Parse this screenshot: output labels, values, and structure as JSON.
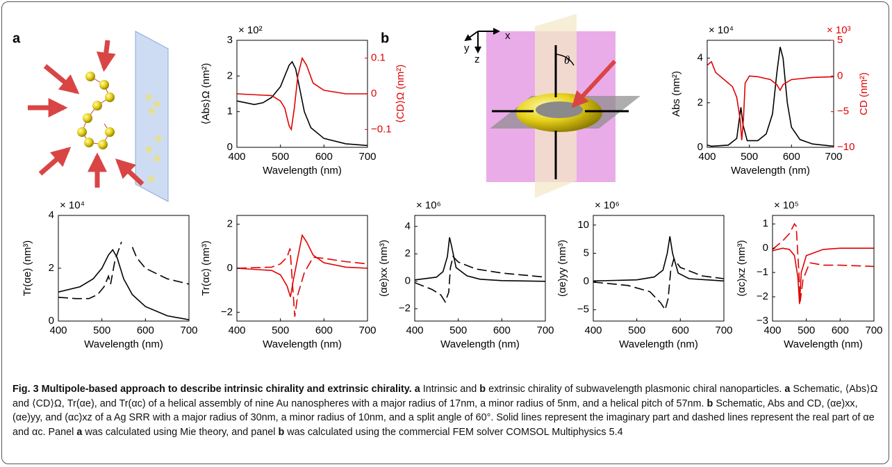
{
  "panels": [
    {
      "label": "a"
    },
    {
      "label": "b",
      "axes": [
        "x",
        "y",
        "z"
      ],
      "angle": "θ"
    }
  ],
  "chart_data": [
    {
      "type": "line",
      "xlabel": "Wavelength (nm)",
      "ylabel": "⟨Abs⟩Ω (nm²)",
      "multiplier": "× 10²",
      "y2label": "⟨CD⟩Ω (nm²)",
      "y2color": "#e00000",
      "xlim": [
        400,
        700
      ],
      "xticks": [
        400,
        500,
        600,
        700
      ],
      "ylim": [
        0,
        3
      ],
      "yticks": [
        0,
        1,
        2,
        3
      ],
      "y2lim": [
        -0.15,
        0.15
      ],
      "y2ticks": [
        {
          "value": -0.1,
          "label": "−0.1"
        },
        0,
        0.1
      ],
      "series": [
        {
          "color": "#000000",
          "dash": false,
          "x": [
            400,
            420,
            440,
            460,
            480,
            500,
            510,
            520,
            527,
            535,
            545,
            555,
            570,
            600,
            650,
            700
          ],
          "values": [
            1.3,
            1.25,
            1.2,
            1.25,
            1.4,
            1.7,
            2.0,
            2.3,
            2.4,
            2.2,
            1.6,
            1.0,
            0.55,
            0.25,
            0.1,
            0.05
          ]
        },
        {
          "color": "#e00000",
          "dash": false,
          "axis": "y2",
          "x": [
            400,
            480,
            500,
            510,
            520,
            525,
            532,
            540,
            550,
            560,
            575,
            600,
            650,
            700
          ],
          "values": [
            0,
            -0.005,
            -0.02,
            -0.04,
            -0.09,
            -0.1,
            -0.04,
            0.05,
            0.1,
            0.08,
            0.03,
            0.01,
            0,
            0
          ]
        }
      ]
    },
    {
      "type": "line",
      "xlabel": "Wavelength (nm)",
      "ylabel": "Abs (nm²)",
      "multiplier": "× 10⁴",
      "y2label": "CD (nm²)",
      "y2multiplier": "× 10³",
      "y2color": "#e00000",
      "xlim": [
        400,
        700
      ],
      "xticks": [
        400,
        500,
        600,
        700
      ],
      "ylim": [
        0,
        4.8
      ],
      "yticks": [
        0,
        2,
        4
      ],
      "y2lim": [
        -10,
        5
      ],
      "y2ticks": [
        {
          "value": -10,
          "label": "−10"
        },
        {
          "value": -5,
          "label": "−5"
        },
        0,
        5
      ],
      "series": [
        {
          "color": "#000000",
          "dash": false,
          "x": [
            400,
            410,
            450,
            470,
            480,
            485,
            495,
            520,
            540,
            555,
            565,
            573,
            580,
            590,
            600,
            620,
            650,
            700
          ],
          "values": [
            0.1,
            0.05,
            0.1,
            0.4,
            1.8,
            1.0,
            0.3,
            0.3,
            0.6,
            1.5,
            3.3,
            4.5,
            4.0,
            2.0,
            0.9,
            0.35,
            0.15,
            0.05
          ]
        },
        {
          "color": "#e00000",
          "dash": false,
          "axis": "y2",
          "x": [
            400,
            410,
            420,
            440,
            460,
            470,
            478,
            482,
            486,
            490,
            500,
            520,
            550,
            565,
            573,
            580,
            600,
            650,
            700
          ],
          "values": [
            1.5,
            2.0,
            0.5,
            -0.5,
            -1.5,
            -3,
            -6,
            -9,
            -6,
            -1,
            0,
            -0.1,
            -0.5,
            -1.2,
            -2,
            -1.2,
            -0.5,
            -0.2,
            -0.1
          ]
        }
      ]
    },
    {
      "type": "line",
      "xlabel": "Wavelength (nm)",
      "ylabel": "Tr(αe) (nm³)",
      "multiplier": "× 10⁴",
      "xlim": [
        400,
        700
      ],
      "xticks": [
        400,
        500,
        600,
        700
      ],
      "ylim": [
        0,
        4
      ],
      "yticks": [
        0,
        2,
        4
      ],
      "series": [
        {
          "color": "#000000",
          "dash": false,
          "x": [
            400,
            450,
            480,
            500,
            515,
            525,
            535,
            550,
            570,
            600,
            650,
            700
          ],
          "values": [
            1.1,
            1.3,
            1.6,
            2.0,
            2.5,
            2.7,
            2.4,
            1.6,
            1.0,
            0.55,
            0.2,
            0.05
          ]
        },
        {
          "color": "#000000",
          "dash": true,
          "x": [
            400,
            440,
            470,
            490,
            505,
            515,
            520,
            530,
            545,
            555,
            570,
            580,
            600,
            650,
            700
          ],
          "values": [
            0.9,
            0.85,
            0.85,
            1.0,
            1.3,
            1.7,
            1.4,
            2.3,
            3.0,
            null,
            2.8,
            2.4,
            2.0,
            1.6,
            1.4
          ]
        }
      ]
    },
    {
      "type": "line",
      "xlabel": "Wavelength (nm)",
      "ylabel": "Tr(αc) (nm³)",
      "xlim": [
        400,
        700
      ],
      "xticks": [
        400,
        500,
        600,
        700
      ],
      "ylim": [
        -2.4,
        2.4
      ],
      "yticks": [
        {
          "value": -2,
          "label": "−2"
        },
        0,
        2
      ],
      "series": [
        {
          "color": "#e00000",
          "dash": false,
          "x": [
            400,
            480,
            500,
            515,
            523,
            530,
            540,
            550,
            560,
            575,
            600,
            650,
            700
          ],
          "values": [
            0,
            -0.1,
            -0.3,
            -0.8,
            -1.3,
            -0.5,
            0.5,
            1.5,
            1.2,
            0.6,
            0.25,
            0.05,
            0
          ]
        },
        {
          "color": "#e00000",
          "dash": true,
          "x": [
            400,
            480,
            500,
            515,
            522,
            527,
            533,
            540,
            555,
            575,
            600,
            650,
            700
          ],
          "values": [
            0,
            0.05,
            0.2,
            0.5,
            0.9,
            -0.5,
            -2.2,
            -1.2,
            -0.2,
            0.5,
            0.45,
            0.3,
            0.2
          ]
        }
      ]
    },
    {
      "type": "line",
      "xlabel": "Wavelength (nm)",
      "ylabel": "(αe)xx (nm³)",
      "multiplier": "× 10⁶",
      "xlim": [
        400,
        700
      ],
      "xticks": [
        400,
        500,
        600,
        700
      ],
      "ylim": [
        -2.9,
        4.8
      ],
      "yticks": [
        {
          "value": -2,
          "label": "−2"
        },
        0,
        2,
        4
      ],
      "series": [
        {
          "color": "#000000",
          "dash": false,
          "x": [
            400,
            450,
            465,
            475,
            480,
            485,
            495,
            520,
            550,
            600,
            700
          ],
          "values": [
            0.1,
            0.3,
            0.7,
            1.8,
            3.2,
            2.5,
            1.0,
            0.4,
            0.15,
            0.05,
            0
          ]
        },
        {
          "color": "#000000",
          "dash": true,
          "x": [
            400,
            440,
            460,
            470,
            478,
            482,
            488,
            500,
            540,
            600,
            700
          ],
          "values": [
            -0.1,
            -0.6,
            -1.0,
            -1.5,
            -0.8,
            1.0,
            1.8,
            1.4,
            0.9,
            0.6,
            0.3
          ]
        }
      ]
    },
    {
      "type": "line",
      "xlabel": "Wavelength (nm)",
      "ylabel": "(αe)yy (nm³)",
      "multiplier": "× 10⁶",
      "xlim": [
        400,
        700
      ],
      "xticks": [
        400,
        500,
        600,
        700
      ],
      "ylim": [
        -7,
        11.7
      ],
      "yticks": [
        {
          "value": -5,
          "label": "−5"
        },
        0,
        5,
        10
      ],
      "series": [
        {
          "color": "#000000",
          "dash": false,
          "x": [
            400,
            500,
            540,
            560,
            570,
            576,
            582,
            595,
            620,
            700
          ],
          "values": [
            0.1,
            0.3,
            0.8,
            2.0,
            5.0,
            8.0,
            5.0,
            1.5,
            0.5,
            0.1
          ]
        },
        {
          "color": "#000000",
          "dash": true,
          "x": [
            400,
            480,
            530,
            555,
            565,
            572,
            578,
            585,
            600,
            650,
            700
          ],
          "values": [
            -0.1,
            -0.7,
            -1.8,
            -3.8,
            -5.0,
            -3.0,
            2.0,
            4.0,
            2.5,
            1.0,
            0.5
          ]
        }
      ]
    },
    {
      "type": "line",
      "xlabel": "Wavelength (nm)",
      "ylabel": "(αc)xz (nm³)",
      "multiplier": "× 10⁵",
      "xlim": [
        400,
        700
      ],
      "xticks": [
        400,
        500,
        600,
        700
      ],
      "ylim": [
        -3,
        1.35
      ],
      "yticks": [
        {
          "value": -3,
          "label": "−3"
        },
        {
          "value": -2,
          "label": "−2"
        },
        {
          "value": -1,
          "label": "−1"
        },
        0,
        1
      ],
      "series": [
        {
          "color": "#e00000",
          "dash": false,
          "x": [
            400,
            430,
            450,
            465,
            475,
            480,
            485,
            500,
            550,
            600,
            700
          ],
          "values": [
            -0.1,
            0,
            -0.05,
            -0.3,
            -1.2,
            -2.3,
            -1.0,
            -0.3,
            -0.05,
            0,
            0
          ]
        },
        {
          "color": "#e00000",
          "dash": true,
          "x": [
            400,
            430,
            450,
            465,
            470,
            478,
            482,
            490,
            510,
            550,
            600,
            700
          ],
          "values": [
            -0.05,
            0.3,
            0.6,
            1.0,
            0.9,
            -1.0,
            -2.2,
            -1.3,
            -0.6,
            -0.7,
            -0.7,
            -0.75
          ]
        }
      ]
    }
  ],
  "caption": {
    "runs": [
      {
        "text": "Fig. 3 Multipole-based approach to describe intrinsic chirality and extrinsic chirality. a",
        "bold": true
      },
      {
        "text": " Intrinsic and ",
        "bold": false
      },
      {
        "text": "b",
        "bold": true
      },
      {
        "text": " extrinsic chirality of subwavelength plasmonic chiral nanoparticles. ",
        "bold": false
      },
      {
        "text": "a",
        "bold": true
      },
      {
        "text": " Schematic, ⟨Abs⟩Ω and ⟨CD⟩Ω, Tr(αe), and Tr(αc) of a helical assembly of nine Au nanospheres with a major radius of 17nm, a minor radius of 5nm, and a helical pitch of 57nm. ",
        "bold": false
      },
      {
        "text": "b",
        "bold": true
      },
      {
        "text": " Schematic, Abs and CD, (αe)xx, (αe)yy, and (αc)xz of a Ag SRR with a major radius of 30nm, a minor radius of 10nm, and a split angle of 60°. Solid lines represent the imaginary part and dashed lines represent the real part of αe and αc. Panel ",
        "bold": false
      },
      {
        "text": "a",
        "bold": true
      },
      {
        "text": " was calculated using Mie theory, and panel ",
        "bold": false
      },
      {
        "text": "b",
        "bold": true
      },
      {
        "text": " was calculated using the commercial FEM solver COMSOL Multiphysics 5.4",
        "bold": false
      }
    ]
  }
}
